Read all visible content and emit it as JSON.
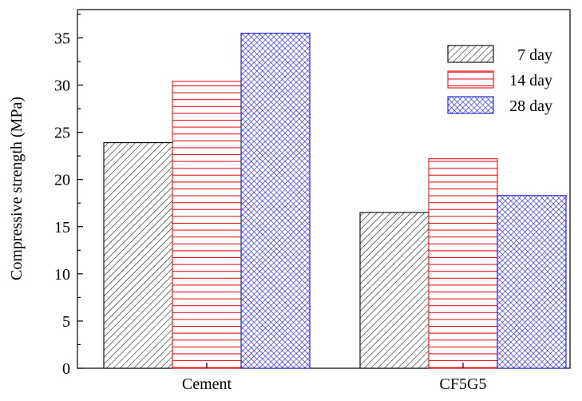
{
  "chart_data": {
    "type": "bar",
    "title": "",
    "xlabel": "",
    "ylabel": "Compressive strength (MPa)",
    "categories": [
      "Cement",
      "CF5G5"
    ],
    "series": [
      {
        "name": "7 day",
        "values": [
          23.9,
          16.5
        ],
        "color": "#000000",
        "pattern": "diagonal-hatch"
      },
      {
        "name": "14 day",
        "values": [
          30.4,
          22.2
        ],
        "color": "#e8141c",
        "pattern": "horizontal-lines"
      },
      {
        "name": "28 day",
        "values": [
          35.5,
          18.3
        ],
        "color": "#1a1ad4",
        "pattern": "crosshatch"
      }
    ],
    "ylim": [
      0,
      38
    ],
    "yticks": [
      0,
      5,
      10,
      15,
      20,
      25,
      30,
      35
    ],
    "yticklabels": [
      "0",
      "5",
      "10",
      "15",
      "20",
      "25",
      "30",
      "35"
    ],
    "grid": false,
    "legend_position": "top-right"
  }
}
